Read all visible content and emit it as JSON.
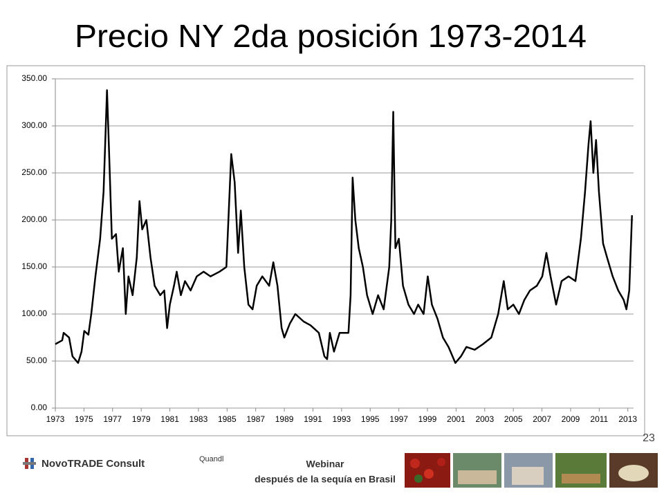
{
  "chart_data": {
    "type": "line",
    "title": "Precio NY 2da posición 1973-2014",
    "x": [
      1973.0,
      1973.48,
      1973.58,
      1973.96,
      1974.2,
      1974.59,
      1974.83,
      1975.02,
      1975.31,
      1975.51,
      1975.8,
      1976.13,
      1976.37,
      1976.61,
      1976.76,
      1976.95,
      1977.24,
      1977.43,
      1977.72,
      1977.92,
      1978.11,
      1978.4,
      1978.69,
      1978.88,
      1979.07,
      1979.36,
      1979.65,
      1979.94,
      1980.33,
      1980.61,
      1980.81,
      1981.0,
      1981.29,
      1981.48,
      1981.77,
      1982.06,
      1982.45,
      1982.88,
      1983.36,
      1983.84,
      1984.47,
      1984.95,
      1985.29,
      1985.53,
      1985.77,
      1985.96,
      1986.2,
      1986.49,
      1986.78,
      1987.07,
      1987.46,
      1987.94,
      1988.23,
      1988.52,
      1988.81,
      1989.0,
      1989.39,
      1989.77,
      1990.35,
      1990.83,
      1991.41,
      1991.8,
      1991.99,
      1992.18,
      1992.47,
      1992.86,
      1993.48,
      1993.63,
      1993.77,
      1993.96,
      1994.2,
      1994.49,
      1994.78,
      1995.17,
      1995.55,
      1995.94,
      1996.33,
      1996.47,
      1996.61,
      1996.76,
      1997.0,
      1997.29,
      1997.67,
      1998.06,
      1998.35,
      1998.73,
      1999.02,
      1999.31,
      1999.7,
      2000.08,
      2000.47,
      2000.95,
      2001.34,
      2001.72,
      2002.3,
      2002.88,
      2003.46,
      2003.94,
      2004.33,
      2004.61,
      2005.0,
      2005.39,
      2005.77,
      2006.16,
      2006.64,
      2007.02,
      2007.31,
      2007.6,
      2007.99,
      2008.37,
      2008.86,
      2009.34,
      2009.72,
      2010.01,
      2010.25,
      2010.4,
      2010.59,
      2010.78,
      2010.98,
      2011.27,
      2011.55,
      2011.94,
      2012.33,
      2012.71,
      2012.9,
      2013.1,
      2013.29
    ],
    "series": [
      {
        "color": "#000000",
        "values": [
          68,
          72,
          80,
          75,
          55,
          48,
          60,
          82,
          78,
          100,
          140,
          180,
          230,
          338,
          270,
          180,
          185,
          145,
          170,
          100,
          140,
          120,
          160,
          220,
          190,
          200,
          160,
          130,
          120,
          125,
          85,
          110,
          130,
          145,
          120,
          135,
          125,
          140,
          145,
          140,
          145,
          150,
          270,
          240,
          165,
          210,
          150,
          110,
          105,
          130,
          140,
          130,
          155,
          130,
          85,
          75,
          90,
          100,
          92,
          88,
          80,
          55,
          52,
          80,
          60,
          80,
          80,
          120,
          245,
          200,
          170,
          150,
          120,
          100,
          120,
          105,
          150,
          200,
          315,
          170,
          180,
          130,
          110,
          100,
          110,
          100,
          140,
          110,
          95,
          75,
          65,
          48,
          55,
          65,
          62,
          68,
          75,
          100,
          135,
          105,
          110,
          100,
          115,
          125,
          130,
          140,
          165,
          140,
          110,
          135,
          140,
          135,
          180,
          230,
          280,
          305,
          250,
          285,
          230,
          175,
          160,
          140,
          125,
          115,
          105,
          125,
          205
        ]
      }
    ],
    "xlim": [
      1973,
      2013.4
    ],
    "xticks": [
      1973,
      1975,
      1977,
      1979,
      1981,
      1983,
      1985,
      1987,
      1989,
      1991,
      1993,
      1995,
      1997,
      1999,
      2001,
      2003,
      2005,
      2007,
      2009,
      2011,
      2013
    ],
    "ylim": [
      0,
      350
    ],
    "yticks": [
      {
        "value": 0,
        "label": "0.00"
      },
      {
        "value": 50,
        "label": "50.00"
      },
      {
        "value": 100,
        "label": "100.00"
      },
      {
        "value": 150,
        "label": "150.00"
      },
      {
        "value": 200,
        "label": "200.00"
      },
      {
        "value": 250,
        "label": "250.00"
      },
      {
        "value": 300,
        "label": "300.00"
      },
      {
        "value": 350,
        "label": "350.00"
      }
    ],
    "grid": true
  },
  "page_number": "23",
  "footer": {
    "logo": "NovoTRADE Consult",
    "source": "Quandl",
    "event": "Webinar",
    "event_subtitle": "después de la sequía en Brasil"
  }
}
